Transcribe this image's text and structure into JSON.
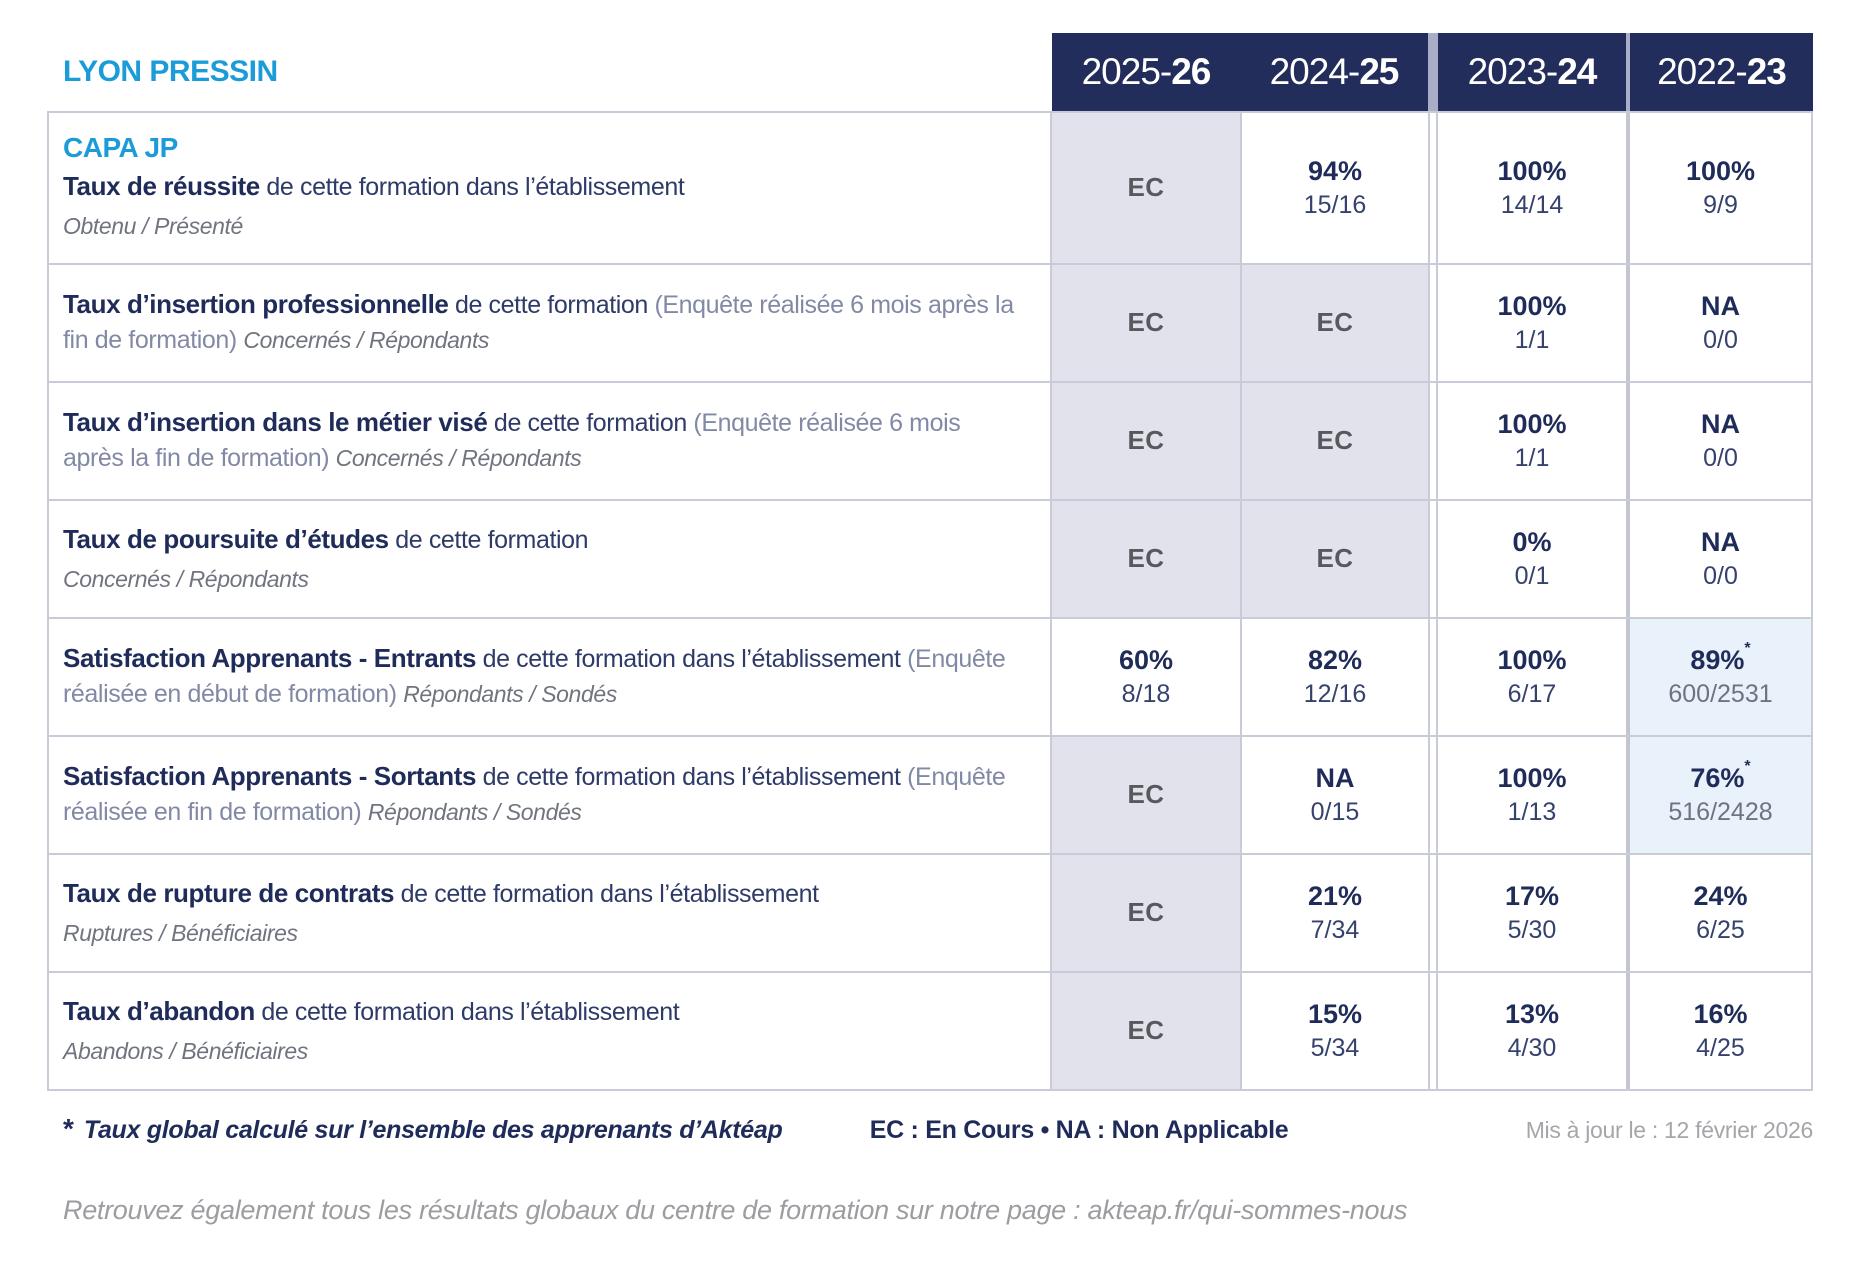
{
  "page": {
    "site": "LYON PRESSIN",
    "program": "CAPA JP",
    "footnote_star": "*",
    "footnote": "Taux global calculé sur l’ensemble des apprenants d’Aktéap",
    "legend": "EC : En Cours   •   NA : Non Applicable",
    "updated": "Mis à jour le : 12 février 2026",
    "bottom_note": "Retrouvez également tous les résultats globaux du centre de formation sur notre page : akteap.fr/qui-sommes-nous"
  },
  "columns": [
    {
      "prefix": "2025-",
      "suffix": "26"
    },
    {
      "prefix": "2024-",
      "suffix": "25"
    },
    {
      "prefix": "2023-",
      "suffix": "24"
    },
    {
      "prefix": "2022-",
      "suffix": "23"
    }
  ],
  "rows": [
    {
      "label_bold": "Taux de réussite",
      "label_regular": " de cette formation dans l’établissement",
      "label_paren": "",
      "label_inline_sub": "",
      "label_block_sub": "Obtenu / Présenté",
      "cells": [
        {
          "value": "EC",
          "fraction": "",
          "star": ""
        },
        {
          "value": "94%",
          "fraction": "15/16",
          "star": ""
        },
        {
          "value": "100%",
          "fraction": "14/14",
          "star": ""
        },
        {
          "value": "100%",
          "fraction": "9/9",
          "star": ""
        }
      ]
    },
    {
      "label_bold": "Taux d’insertion professionnelle",
      "label_regular": " de cette formation ",
      "label_paren": "(Enquête réalisée 6 mois après la fin de formation) ",
      "label_inline_sub": "Concernés / Répondants",
      "label_block_sub": "",
      "cells": [
        {
          "value": "EC",
          "fraction": "",
          "star": ""
        },
        {
          "value": "EC",
          "fraction": "",
          "star": ""
        },
        {
          "value": "100%",
          "fraction": "1/1",
          "star": ""
        },
        {
          "value": "NA",
          "fraction": "0/0",
          "star": ""
        }
      ]
    },
    {
      "label_bold": "Taux d’insertion dans le métier visé",
      "label_regular": " de cette formation ",
      "label_paren": "(Enquête réalisée 6 mois après la fin de formation) ",
      "label_inline_sub": "Concernés / Répondants",
      "label_block_sub": "",
      "cells": [
        {
          "value": "EC",
          "fraction": "",
          "star": ""
        },
        {
          "value": "EC",
          "fraction": "",
          "star": ""
        },
        {
          "value": "100%",
          "fraction": "1/1",
          "star": ""
        },
        {
          "value": "NA",
          "fraction": "0/0",
          "star": ""
        }
      ]
    },
    {
      "label_bold": "Taux de poursuite d’études",
      "label_regular": " de cette formation",
      "label_paren": "",
      "label_inline_sub": "",
      "label_block_sub": "Concernés / Répondants",
      "cells": [
        {
          "value": "EC",
          "fraction": "",
          "star": ""
        },
        {
          "value": "EC",
          "fraction": "",
          "star": ""
        },
        {
          "value": "0%",
          "fraction": "0/1",
          "star": ""
        },
        {
          "value": "NA",
          "fraction": "0/0",
          "star": ""
        }
      ]
    },
    {
      "label_bold": "Satisfaction Apprenants - Entrants",
      "label_regular": " de cette formation dans l’établissement ",
      "label_paren": "(Enquête réalisée en début de formation) ",
      "label_inline_sub": "Répondants / Sondés",
      "label_block_sub": "",
      "cells": [
        {
          "value": "60%",
          "fraction": "8/18",
          "star": ""
        },
        {
          "value": "82%",
          "fraction": "12/16",
          "star": ""
        },
        {
          "value": "100%",
          "fraction": "6/17",
          "star": ""
        },
        {
          "value": "89%",
          "fraction": "600/2531",
          "star": "*"
        }
      ]
    },
    {
      "label_bold": "Satisfaction Apprenants - Sortants",
      "label_regular": " de cette formation dans l’établissement ",
      "label_paren": "(Enquête réalisée en fin de formation) ",
      "label_inline_sub": "Répondants / Sondés",
      "label_block_sub": "",
      "cells": [
        {
          "value": "EC",
          "fraction": "",
          "star": ""
        },
        {
          "value": "NA",
          "fraction": "0/15",
          "star": ""
        },
        {
          "value": "100%",
          "fraction": "1/13",
          "star": ""
        },
        {
          "value": "76%",
          "fraction": "516/2428",
          "star": "*"
        }
      ]
    },
    {
      "label_bold": "Taux de rupture de contrats",
      "label_regular": " de cette formation dans l’établissement",
      "label_paren": "",
      "label_inline_sub": "",
      "label_block_sub": "Ruptures / Bénéficiaires",
      "cells": [
        {
          "value": "EC",
          "fraction": "",
          "star": ""
        },
        {
          "value": "21%",
          "fraction": "7/34",
          "star": ""
        },
        {
          "value": "17%",
          "fraction": "5/30",
          "star": ""
        },
        {
          "value": "24%",
          "fraction": "6/25",
          "star": ""
        }
      ]
    },
    {
      "label_bold": "Taux d’abandon",
      "label_regular": " de cette formation dans l’établissement",
      "label_paren": "",
      "label_inline_sub": "",
      "label_block_sub": "Abandons / Bénéficiaires",
      "cells": [
        {
          "value": "EC",
          "fraction": "",
          "star": ""
        },
        {
          "value": "15%",
          "fraction": "5/34",
          "star": ""
        },
        {
          "value": "13%",
          "fraction": "4/30",
          "star": ""
        },
        {
          "value": "16%",
          "fraction": "4/25",
          "star": ""
        }
      ]
    }
  ],
  "colors": {
    "header_navy": "#232d5b",
    "brand_blue": "#1b9cd8",
    "ec_cell_bg": "#e2e2ec",
    "star_cell_bg": "#e9f2fa",
    "border_grey": "#cacbd8"
  }
}
